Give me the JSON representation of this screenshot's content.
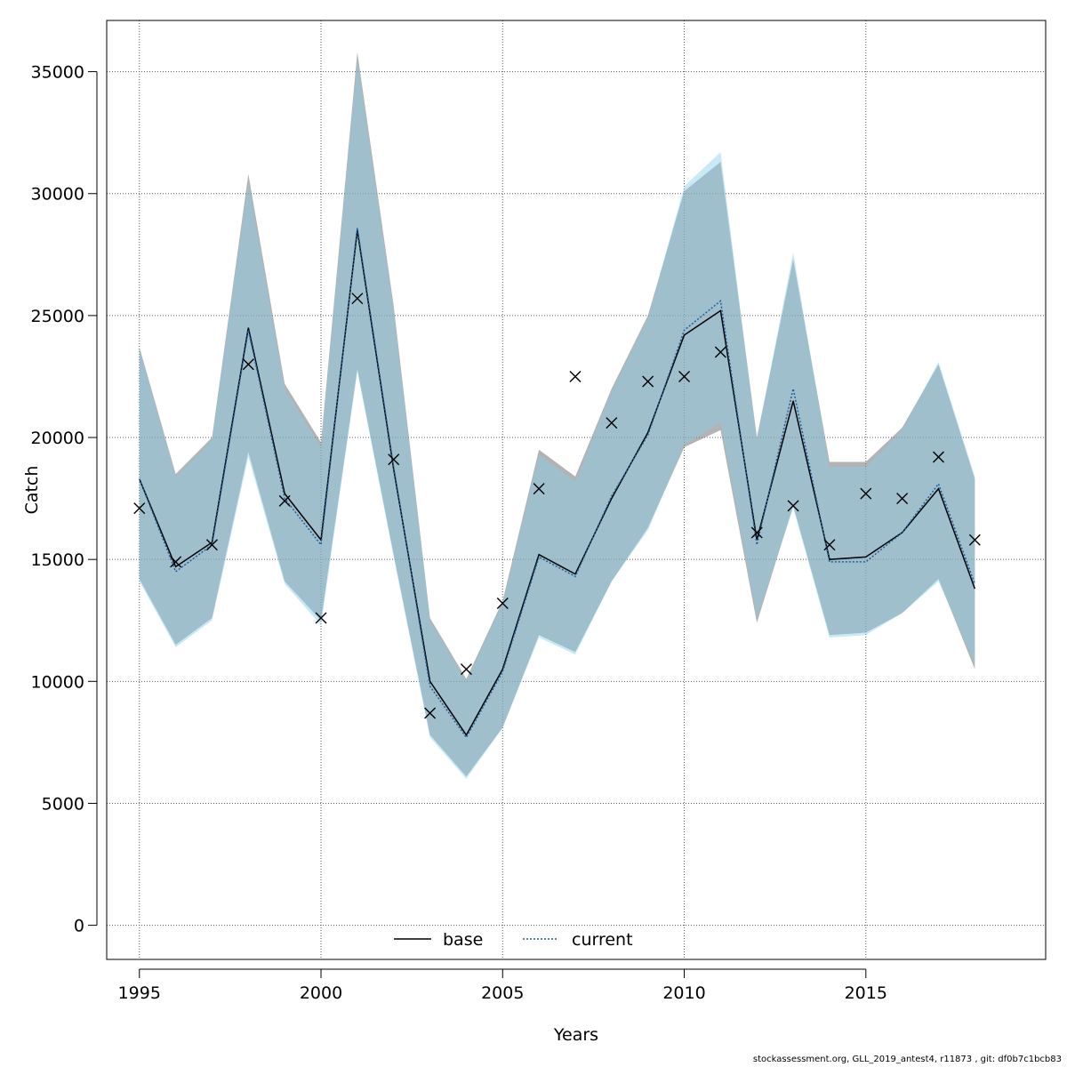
{
  "chart_data": {
    "type": "line",
    "title": "",
    "xlabel": "Years",
    "ylabel": "Catch",
    "xlim": [
      1994.1,
      2019.95
    ],
    "ylim": [
      -1400,
      37100
    ],
    "x_ticks": [
      1995,
      2000,
      2005,
      2010,
      2015
    ],
    "y_ticks": [
      0,
      5000,
      10000,
      15000,
      20000,
      25000,
      30000,
      35000
    ],
    "grid": true,
    "legend_position": "bottom",
    "x": [
      1995,
      1996,
      1997,
      1998,
      1999,
      2000,
      2001,
      2002,
      2003,
      2004,
      2005,
      2006,
      2007,
      2008,
      2009,
      2010,
      2011,
      2012,
      2013,
      2014,
      2015,
      2016,
      2017,
      2018
    ],
    "series": [
      {
        "name": "base",
        "line_style": "solid",
        "color": "#000000",
        "band_color": "#808080",
        "values": [
          18300,
          14700,
          15700,
          24500,
          17700,
          15800,
          28500,
          18700,
          10000,
          7800,
          10500,
          15200,
          14400,
          17500,
          20200,
          24200,
          25200,
          15800,
          21500,
          15000,
          15100,
          16100,
          17900,
          13800
        ],
        "lower": [
          14200,
          11500,
          12600,
          19400,
          14100,
          12500,
          22800,
          15200,
          7800,
          6100,
          8100,
          11900,
          11200,
          14100,
          16300,
          19600,
          20300,
          12400,
          17200,
          11900,
          12000,
          12800,
          14200,
          10500
        ],
        "upper": [
          23700,
          18500,
          20000,
          30800,
          22200,
          19800,
          35800,
          25400,
          12600,
          10100,
          13300,
          19500,
          18400,
          22000,
          25000,
          30100,
          31300,
          20000,
          27300,
          19000,
          19000,
          20400,
          23000,
          18300
        ]
      },
      {
        "name": "current",
        "line_style": "dotted",
        "color": "#1f5f9f",
        "band_color": "#87ceeb",
        "values": [
          18300,
          14500,
          15600,
          24400,
          17500,
          15600,
          28600,
          18800,
          9800,
          7700,
          10400,
          15100,
          14300,
          17600,
          20100,
          24400,
          25600,
          15600,
          22000,
          14900,
          14900,
          16100,
          18100,
          14000
        ],
        "lower": [
          14100,
          11400,
          12500,
          19200,
          14000,
          12300,
          22700,
          15100,
          7700,
          6000,
          8100,
          11800,
          11100,
          14100,
          16200,
          19700,
          20600,
          12600,
          17100,
          11800,
          11900,
          12800,
          14100,
          10700
        ],
        "upper": [
          23600,
          18400,
          19900,
          30500,
          22000,
          19600,
          35500,
          25200,
          12500,
          10000,
          13200,
          19300,
          18200,
          21900,
          24900,
          30300,
          31700,
          19900,
          27600,
          18800,
          18800,
          20300,
          23100,
          18400
        ]
      }
    ],
    "observed": {
      "marker": "x",
      "values": [
        17100,
        14900,
        15600,
        23000,
        17400,
        12600,
        25700,
        19100,
        8700,
        10500,
        13200,
        17900,
        22500,
        20600,
        22300,
        22500,
        23500,
        16100,
        17200,
        15600,
        17700,
        17500,
        19200,
        15800
      ]
    }
  },
  "footer": "stockassessment.org, GLL_2019_antest4, r11873 , git: df0b7c1bcb83"
}
